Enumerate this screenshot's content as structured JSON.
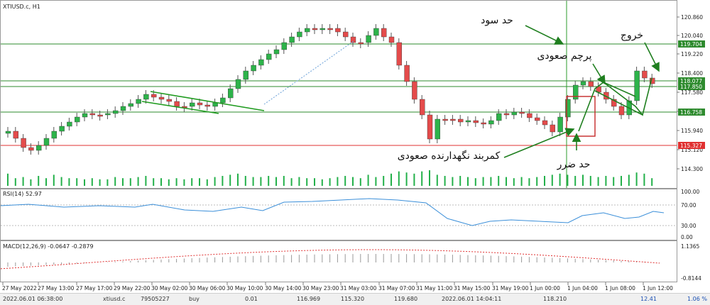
{
  "chart": {
    "symbol": "XTIUSD.c, H1",
    "rsi_label": "RSI(14) 52.97",
    "macd_label": "MACD(12,26,9) -0.0647 -0.2879"
  },
  "price_axis": {
    "ticks": [
      "120.860",
      "120.040",
      "119.220",
      "118.400",
      "117.580",
      "116.760",
      "115.940",
      "115.120",
      "114.300"
    ],
    "badges": [
      {
        "text": "119.704",
        "color": "#2e8b2e"
      },
      {
        "text": "118.077",
        "color": "#2e8b2e"
      },
      {
        "text": "117.850",
        "color": "#2e8b2e"
      },
      {
        "text": "116.758",
        "color": "#2e8b2e"
      },
      {
        "text": "115.327",
        "color": "#e03030"
      }
    ]
  },
  "rsi_axis": {
    "ticks": [
      "100.00",
      "70.00",
      "30.00",
      "0.00"
    ]
  },
  "macd_axis": {
    "ticks": [
      "1.1365",
      "-0.8144"
    ]
  },
  "time_axis": {
    "ticks": [
      "27 May 2022",
      "27 May 13:00",
      "27 May 17:00",
      "29 May 22:00",
      "30 May 02:00",
      "30 May 06:00",
      "30 May 10:00",
      "30 May 14:00",
      "30 May 23:00",
      "31 May 03:00",
      "31 May 07:00",
      "31 May 11:00",
      "31 May 15:00",
      "31 May 19:00",
      "1 Jun 00:00",
      "1 Jun 04:00",
      "1 Jun 08:00",
      "1 Jun 12:00"
    ]
  },
  "annotations": {
    "take_profit": "حد سود",
    "bull_flag": "پرچم صعودی",
    "exit": "خروج",
    "stop_loss": "حد ضرر",
    "bullish_holder": "کمربند نگهدارنده صعودی"
  },
  "status_bar": {
    "open_time": "2022.06.01 06:38:00",
    "symbol": "xtiusd.c",
    "ticket": "79505227",
    "type": "buy",
    "volume": "0.01",
    "open_price": "116.969",
    "stop_loss": "115.320",
    "take_profit": "119.680",
    "close_time": "2022.06.01 14:04:11",
    "close_price": "118.210",
    "profit": "12.41",
    "percent": "1.06 %"
  },
  "colors": {
    "bull": "#2db34a",
    "bear": "#e44b4b",
    "level": "#2e9b2e",
    "stop": "#e03030",
    "rsi": "#3b8fd9",
    "macd_signal": "#e03030",
    "volume": "#23b04a"
  }
}
